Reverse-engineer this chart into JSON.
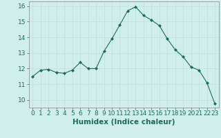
{
  "x": [
    0,
    1,
    2,
    3,
    4,
    5,
    6,
    7,
    8,
    9,
    10,
    11,
    12,
    13,
    14,
    15,
    16,
    17,
    18,
    19,
    20,
    21,
    22,
    23
  ],
  "y": [
    11.5,
    11.9,
    11.95,
    11.75,
    11.7,
    11.9,
    12.4,
    12.0,
    12.0,
    13.1,
    13.9,
    14.8,
    15.7,
    15.95,
    15.4,
    15.1,
    14.75,
    13.9,
    13.2,
    12.75,
    12.1,
    11.9,
    11.1,
    9.75
  ],
  "line_color": "#1a6b5a",
  "marker_color": "#1a6b5a",
  "bg_color": "#d0eeee",
  "grid_color": "#c0dede",
  "xlabel": "Humidex (Indice chaleur)",
  "ylim": [
    9.5,
    16.3
  ],
  "xlim": [
    -0.5,
    23.5
  ],
  "yticks": [
    10,
    11,
    12,
    13,
    14,
    15,
    16
  ],
  "xticks": [
    0,
    1,
    2,
    3,
    4,
    5,
    6,
    7,
    8,
    9,
    10,
    11,
    12,
    13,
    14,
    15,
    16,
    17,
    18,
    19,
    20,
    21,
    22,
    23
  ],
  "tick_fontsize": 6.5,
  "label_fontsize": 7.5,
  "line_width": 0.8,
  "marker_size": 2.0
}
